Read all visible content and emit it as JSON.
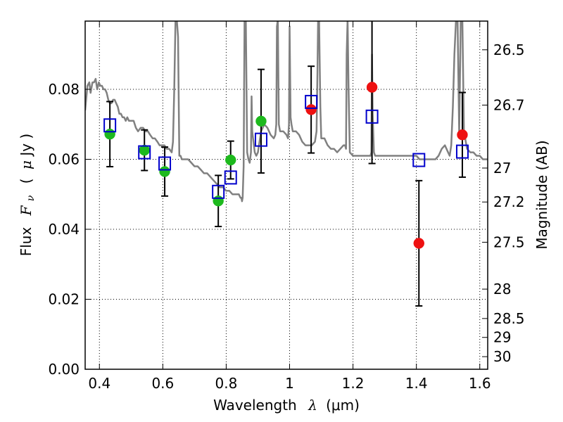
{
  "chart_data": {
    "type": "scatter",
    "xlabel_text": "Wavelength",
    "xlabel_symbol": "λ",
    "xlabel_unit": "(μm)",
    "ylabel_text": "Flux",
    "ylabel_symbol": "F",
    "ylabel_symbol_sub": "ν",
    "ylabel_unit_open": "(",
    "ylabel_unit_mu": "μ",
    "ylabel_unit_rest": "Jy )",
    "y2label": "Magnitude (AB)",
    "xlim": [
      0.355,
      1.625
    ],
    "ylim": [
      0.0,
      0.0995
    ],
    "grid": true,
    "x_ticks": [
      0.4,
      0.6,
      0.8,
      1.0,
      1.2,
      1.4,
      1.6
    ],
    "x_tick_labels": [
      "0.4",
      "0.6",
      "0.8",
      "1",
      "1.2",
      "1.4",
      "1.6"
    ],
    "y_ticks": [
      0.0,
      0.02,
      0.04,
      0.06,
      0.08
    ],
    "y_tick_labels": [
      "0.00",
      "0.02",
      "0.04",
      "0.06",
      "0.08"
    ],
    "y2_ticks": [
      {
        "label": "26.5",
        "flux": 0.0913
      },
      {
        "label": "26.7",
        "flux": 0.0755
      },
      {
        "label": "27",
        "flux": 0.0575
      },
      {
        "label": "27.2",
        "flux": 0.0478
      },
      {
        "label": "27.5",
        "flux": 0.0363
      },
      {
        "label": "28",
        "flux": 0.0229
      },
      {
        "label": "28.5",
        "flux": 0.0145
      },
      {
        "label": "29",
        "flux": 0.0091
      },
      {
        "label": "30",
        "flux": 0.0036
      }
    ],
    "colors": {
      "spectrum": "#808080",
      "green": "#1db91d",
      "red": "#ee1111",
      "model_box": "#0000cc",
      "errorbar": "#000000"
    },
    "series": [
      {
        "marker": "green-circle",
        "points": [
          {
            "x": 0.433,
            "y": 0.0672,
            "err": 0.0093
          },
          {
            "x": 0.542,
            "y": 0.0626,
            "err": 0.0058
          },
          {
            "x": 0.606,
            "y": 0.0565,
            "err": 0.007
          },
          {
            "x": 0.775,
            "y": 0.0481,
            "err": 0.0073
          },
          {
            "x": 0.814,
            "y": 0.0598,
            "err": 0.0054
          },
          {
            "x": 0.91,
            "y": 0.0709,
            "err": 0.0148
          }
        ]
      },
      {
        "marker": "red-circle",
        "points": [
          {
            "x": 1.068,
            "y": 0.0742,
            "err": 0.0124
          },
          {
            "x": 1.26,
            "y": 0.0806,
            "err": 0.0218
          },
          {
            "x": 1.408,
            "y": 0.036,
            "err": 0.0179
          },
          {
            "x": 1.545,
            "y": 0.067,
            "err": 0.0121
          }
        ]
      },
      {
        "marker": "blue-open-square",
        "points": [
          {
            "x": 0.433,
            "y": 0.0697
          },
          {
            "x": 0.542,
            "y": 0.062
          },
          {
            "x": 0.606,
            "y": 0.0588
          },
          {
            "x": 0.775,
            "y": 0.0507
          },
          {
            "x": 0.814,
            "y": 0.0548
          },
          {
            "x": 0.91,
            "y": 0.0656
          },
          {
            "x": 1.068,
            "y": 0.0764
          },
          {
            "x": 1.26,
            "y": 0.0722
          },
          {
            "x": 1.408,
            "y": 0.0598
          },
          {
            "x": 1.545,
            "y": 0.0622
          }
        ]
      },
      {
        "marker": "gray-line",
        "x": [
          0.355,
          0.362,
          0.368,
          0.372,
          0.378,
          0.383,
          0.388,
          0.393,
          0.398,
          0.403,
          0.408,
          0.413,
          0.418,
          0.423,
          0.428,
          0.433,
          0.438,
          0.443,
          0.448,
          0.453,
          0.458,
          0.463,
          0.468,
          0.473,
          0.478,
          0.483,
          0.488,
          0.493,
          0.5,
          0.508,
          0.515,
          0.522,
          0.53,
          0.538,
          0.545,
          0.553,
          0.56,
          0.568,
          0.575,
          0.583,
          0.59,
          0.598,
          0.605,
          0.612,
          0.62,
          0.628,
          0.632,
          0.636,
          0.64,
          0.644,
          0.648,
          0.652,
          0.656,
          0.66,
          0.67,
          0.68,
          0.69,
          0.7,
          0.71,
          0.72,
          0.73,
          0.74,
          0.75,
          0.76,
          0.77,
          0.78,
          0.79,
          0.8,
          0.81,
          0.82,
          0.83,
          0.84,
          0.845,
          0.848,
          0.85,
          0.852,
          0.855,
          0.858,
          0.862,
          0.866,
          0.87,
          0.874,
          0.878,
          0.88,
          0.882,
          0.886,
          0.89,
          0.895,
          0.9,
          0.91,
          0.92,
          0.93,
          0.94,
          0.95,
          0.955,
          0.958,
          0.96,
          0.963,
          0.966,
          0.97,
          0.98,
          0.99,
          0.995,
          0.998,
          1.0,
          1.003,
          1.006,
          1.01,
          1.02,
          1.03,
          1.04,
          1.05,
          1.06,
          1.07,
          1.08,
          1.085,
          1.088,
          1.09,
          1.093,
          1.097,
          1.1,
          1.11,
          1.12,
          1.13,
          1.14,
          1.15,
          1.16,
          1.17,
          1.175,
          1.178,
          1.18,
          1.183,
          1.186,
          1.19,
          1.2,
          1.21,
          1.22,
          1.23,
          1.24,
          1.25,
          1.255,
          1.258,
          1.26,
          1.262,
          1.266,
          1.27,
          1.28,
          1.29,
          1.3,
          1.31,
          1.32,
          1.33,
          1.34,
          1.345,
          1.35,
          1.355,
          1.36,
          1.37,
          1.38,
          1.39,
          1.4,
          1.41,
          1.42,
          1.43,
          1.44,
          1.45,
          1.46,
          1.47,
          1.48,
          1.49,
          1.5,
          1.505,
          1.51,
          1.515,
          1.52,
          1.525,
          1.53,
          1.535,
          1.54,
          1.545,
          1.55,
          1.56,
          1.57,
          1.58,
          1.59,
          1.6,
          1.61,
          1.62,
          1.625
        ],
        "y": [
          0.074,
          0.081,
          0.082,
          0.079,
          0.082,
          0.082,
          0.083,
          0.08,
          0.082,
          0.081,
          0.081,
          0.08,
          0.08,
          0.079,
          0.077,
          0.076,
          0.076,
          0.077,
          0.077,
          0.076,
          0.075,
          0.073,
          0.073,
          0.072,
          0.072,
          0.071,
          0.072,
          0.071,
          0.071,
          0.071,
          0.069,
          0.068,
          0.069,
          0.069,
          0.068,
          0.068,
          0.067,
          0.066,
          0.066,
          0.065,
          0.064,
          0.064,
          0.064,
          0.063,
          0.063,
          0.062,
          0.065,
          0.08,
          0.1,
          0.1,
          0.095,
          0.061,
          0.061,
          0.06,
          0.06,
          0.06,
          0.059,
          0.058,
          0.058,
          0.057,
          0.056,
          0.056,
          0.055,
          0.054,
          0.053,
          0.052,
          0.052,
          0.051,
          0.051,
          0.05,
          0.05,
          0.05,
          0.049,
          0.049,
          0.048,
          0.049,
          0.058,
          0.1,
          0.1,
          0.062,
          0.06,
          0.059,
          0.062,
          0.078,
          0.068,
          0.065,
          0.062,
          0.061,
          0.062,
          0.068,
          0.07,
          0.069,
          0.067,
          0.066,
          0.067,
          0.07,
          0.098,
          0.1,
          0.07,
          0.068,
          0.068,
          0.067,
          0.066,
          0.07,
          0.098,
          0.072,
          0.07,
          0.068,
          0.068,
          0.067,
          0.065,
          0.064,
          0.064,
          0.064,
          0.065,
          0.068,
          0.085,
          0.1,
          0.1,
          0.075,
          0.066,
          0.066,
          0.064,
          0.063,
          0.063,
          0.062,
          0.063,
          0.064,
          0.064,
          0.063,
          0.09,
          0.1,
          0.08,
          0.062,
          0.061,
          0.061,
          0.061,
          0.061,
          0.061,
          0.061,
          0.061,
          0.062,
          0.09,
          0.073,
          0.062,
          0.061,
          0.061,
          0.061,
          0.061,
          0.061,
          0.061,
          0.061,
          0.061,
          0.061,
          0.061,
          0.061,
          0.061,
          0.061,
          0.061,
          0.061,
          0.061,
          0.06,
          0.06,
          0.06,
          0.06,
          0.06,
          0.06,
          0.061,
          0.063,
          0.064,
          0.062,
          0.061,
          0.064,
          0.075,
          0.09,
          0.1,
          0.1,
          0.067,
          0.1,
          0.1,
          0.068,
          0.063,
          0.062,
          0.062,
          0.061,
          0.061,
          0.06,
          0.06,
          0.06
        ]
      }
    ]
  }
}
